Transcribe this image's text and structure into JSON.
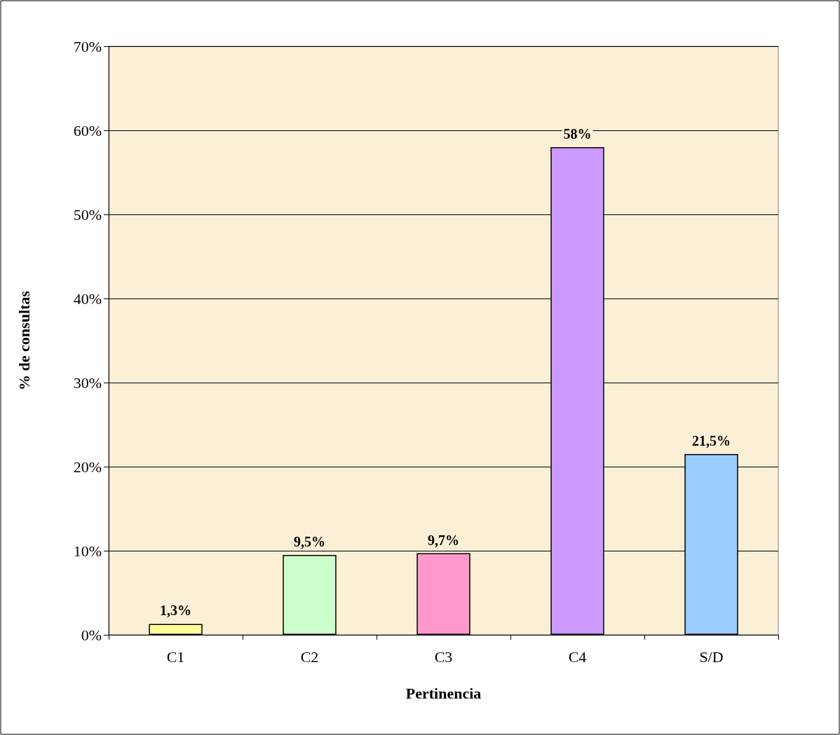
{
  "chart_data": {
    "type": "bar",
    "xlabel": "Pertinencia",
    "ylabel": "% de consultas",
    "categories": [
      "C1",
      "C2",
      "C3",
      "C4",
      "S/D"
    ],
    "values": [
      1.3,
      9.5,
      9.7,
      58,
      21.5
    ],
    "colors": [
      "#ffff99",
      "#ccffcc",
      "#ff99cc",
      "#cc99ff",
      "#99ccff"
    ],
    "value_labels": [
      "1,3%",
      "9,5%",
      "9,7%",
      "58%",
      "21,5%"
    ],
    "ylim": [
      0,
      70
    ],
    "yticks": [
      {
        "value": 0,
        "label": "0%"
      },
      {
        "value": 10,
        "label": "10%"
      },
      {
        "value": 20,
        "label": "20%"
      },
      {
        "value": 30,
        "label": "30%"
      },
      {
        "value": 40,
        "label": "40%"
      },
      {
        "value": 50,
        "label": "50%"
      },
      {
        "value": 60,
        "label": "60%"
      },
      {
        "value": 70,
        "label": "70%"
      }
    ],
    "grid": "y"
  }
}
